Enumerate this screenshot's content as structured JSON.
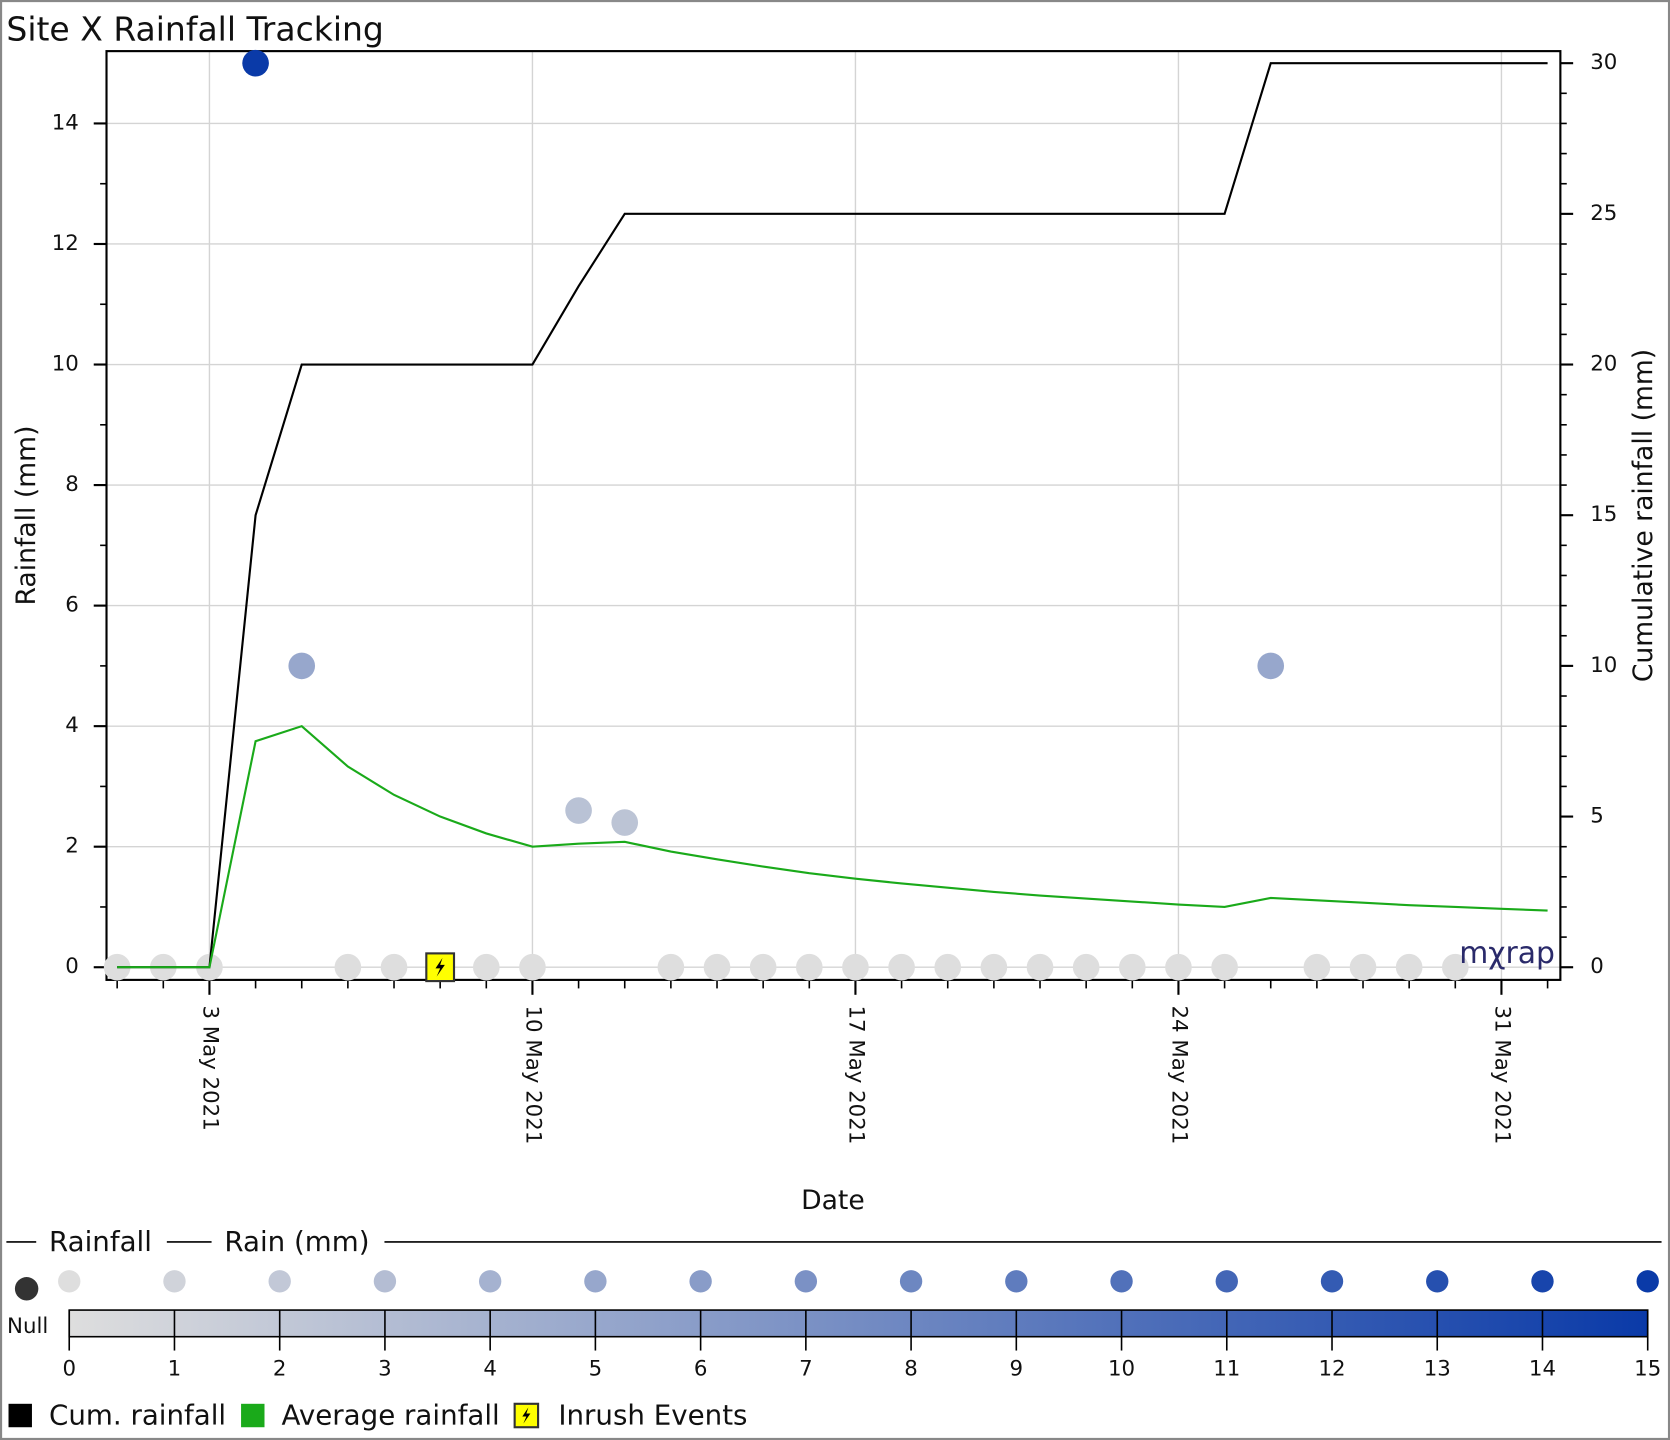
{
  "chart_data": {
    "type": "scatter",
    "title": "Site X  Rainfall Tracking",
    "x_label": "Date",
    "y_label": "Rainfall (mm)",
    "y2_label": "Cumulative rainfall (mm)",
    "x": [
      "2021-05-01",
      "2021-05-02",
      "2021-05-03",
      "2021-05-04",
      "2021-05-05",
      "2021-05-06",
      "2021-05-07",
      "2021-05-08",
      "2021-05-09",
      "2021-05-10",
      "2021-05-11",
      "2021-05-12",
      "2021-05-13",
      "2021-05-14",
      "2021-05-15",
      "2021-05-16",
      "2021-05-17",
      "2021-05-18",
      "2021-05-19",
      "2021-05-20",
      "2021-05-21",
      "2021-05-22",
      "2021-05-23",
      "2021-05-24",
      "2021-05-25",
      "2021-05-26",
      "2021-05-27",
      "2021-05-28",
      "2021-05-29",
      "2021-05-30",
      "2021-05-31",
      "2021-06-01"
    ],
    "xlim": [
      "2021-05-01",
      "2021-06-01"
    ],
    "xticks": [
      {
        "value": "2021-05-03",
        "label": "3 May 2021"
      },
      {
        "value": "2021-05-10",
        "label": "10 May 2021"
      },
      {
        "value": "2021-05-17",
        "label": "17 May 2021"
      },
      {
        "value": "2021-05-24",
        "label": "24 May 2021"
      },
      {
        "value": "2021-05-31",
        "label": "31 May 2021"
      }
    ],
    "ylim": [
      -0.21,
      15.2
    ],
    "yticks": [
      0,
      2,
      4,
      6,
      8,
      10,
      12,
      14
    ],
    "y2lim": [
      -0.42,
      30.4
    ],
    "y2ticks": [
      0,
      5,
      10,
      15,
      20,
      25,
      30
    ],
    "grid": true,
    "series": [
      {
        "name": "Rainfall",
        "type": "scatter",
        "values": [
          0,
          0,
          0,
          15,
          5,
          0,
          0,
          0,
          0,
          0,
          2.6,
          2.4,
          0,
          0,
          0,
          0,
          0,
          0,
          0,
          0,
          0,
          0,
          0,
          0,
          0,
          5,
          0,
          0,
          0,
          0,
          null,
          null
        ]
      },
      {
        "name": "Cum. rainfall",
        "type": "line",
        "color": "#000000",
        "axis": "y2",
        "values": [
          0,
          0,
          0,
          15,
          20,
          20,
          20,
          20,
          20,
          20,
          22.6,
          25,
          25,
          25,
          25,
          25,
          25,
          25,
          25,
          25,
          25,
          25,
          25,
          25,
          25,
          30,
          30,
          30,
          30,
          30,
          30,
          30
        ]
      },
      {
        "name": "Average rainfall",
        "type": "line",
        "color": "#1aaa1a",
        "values": [
          0,
          0,
          0,
          3.75,
          4.0,
          3.33,
          2.86,
          2.5,
          2.22,
          2.0,
          2.05,
          2.08,
          1.92,
          1.79,
          1.67,
          1.56,
          1.47,
          1.39,
          1.32,
          1.25,
          1.19,
          1.14,
          1.09,
          1.04,
          1.0,
          1.15,
          1.11,
          1.07,
          1.03,
          1.0,
          0.97,
          0.94
        ]
      }
    ],
    "events": {
      "name": "Inrush Events",
      "x": [
        "2021-05-08"
      ],
      "color": "#ffff00"
    },
    "colorscale": {
      "label": "Rain (mm)",
      "colors": [
        "#dedede",
        "#0a3aa8"
      ],
      "range": [
        0,
        15
      ],
      "ticks": [
        0,
        1,
        2,
        3,
        4,
        5,
        6,
        7,
        8,
        9,
        10,
        11,
        12,
        13,
        14,
        15
      ],
      "null_label": "Null",
      "null_color": "#333333"
    },
    "logo": "mχrap"
  }
}
